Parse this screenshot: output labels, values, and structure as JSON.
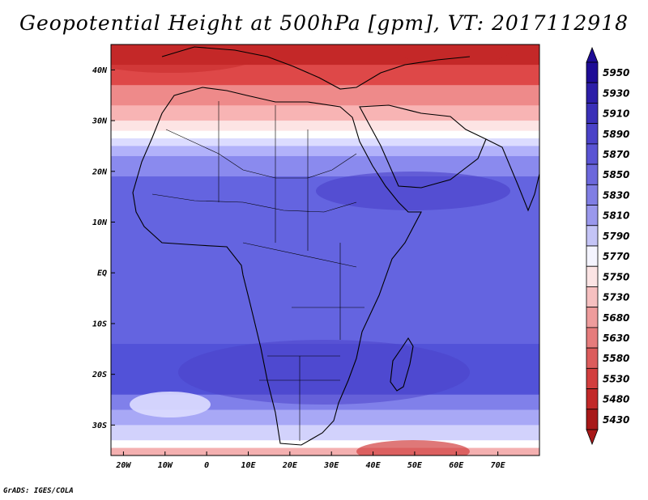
{
  "title": "Geopotential Height at 500hPa [gpm], VT: 2017112918",
  "credit": "GrADS: IGES/COLA",
  "map": {
    "lon_range": [
      -23,
      80
    ],
    "lat_range": [
      -36,
      45
    ],
    "lon_ticks": [
      {
        "value": -20,
        "label": "20W"
      },
      {
        "value": -10,
        "label": "10W"
      },
      {
        "value": 0,
        "label": "0"
      },
      {
        "value": 10,
        "label": "10E"
      },
      {
        "value": 20,
        "label": "20E"
      },
      {
        "value": 30,
        "label": "30E"
      },
      {
        "value": 40,
        "label": "40E"
      },
      {
        "value": 50,
        "label": "50E"
      },
      {
        "value": 60,
        "label": "60E"
      },
      {
        "value": 70,
        "label": "70E"
      }
    ],
    "lat_ticks": [
      {
        "value": 40,
        "label": "40N"
      },
      {
        "value": 30,
        "label": "30N"
      },
      {
        "value": 20,
        "label": "20N"
      },
      {
        "value": 10,
        "label": "10N"
      },
      {
        "value": 0,
        "label": "EQ"
      },
      {
        "value": -10,
        "label": "10S"
      },
      {
        "value": -20,
        "label": "20S"
      },
      {
        "value": -30,
        "label": "30S"
      }
    ],
    "bands": [
      {
        "lat_top": 45,
        "lat_bottom": 41,
        "color": "#c42828"
      },
      {
        "lat_top": 41,
        "lat_bottom": 37,
        "color": "#de4848"
      },
      {
        "lat_top": 37,
        "lat_bottom": 33,
        "color": "#ee8a8a"
      },
      {
        "lat_top": 33,
        "lat_bottom": 30,
        "color": "#f8b4b4"
      },
      {
        "lat_top": 30,
        "lat_bottom": 28,
        "color": "#fde4e4"
      },
      {
        "lat_top": 28,
        "lat_bottom": 26.5,
        "color": "#ffffff"
      },
      {
        "lat_top": 26.5,
        "lat_bottom": 25,
        "color": "#dcdcff"
      },
      {
        "lat_top": 25,
        "lat_bottom": 23,
        "color": "#b2b2fa"
      },
      {
        "lat_top": 23,
        "lat_bottom": 19,
        "color": "#8a8aee"
      },
      {
        "lat_top": 19,
        "lat_bottom": -14,
        "color": "#6464e0"
      },
      {
        "lat_top": -14,
        "lat_bottom": -24,
        "color": "#5252d8"
      },
      {
        "lat_top": -24,
        "lat_bottom": -27,
        "color": "#8080ea"
      },
      {
        "lat_top": -27,
        "lat_bottom": -30,
        "color": "#a8a8f6"
      },
      {
        "lat_top": -30,
        "lat_bottom": -33,
        "color": "#d2d2fc"
      },
      {
        "lat_top": -33,
        "lat_bottom": -34.5,
        "color": "#ffffff"
      },
      {
        "lat_top": -34.5,
        "lat_bottom": -36,
        "color": "#f4b0b0"
      }
    ]
  },
  "colorbar": {
    "levels": [
      {
        "label": "5950",
        "color": "#1e0c96"
      },
      {
        "label": "5930",
        "color": "#2c1ea8"
      },
      {
        "label": "5910",
        "color": "#3a30b8"
      },
      {
        "label": "5890",
        "color": "#4a42c8"
      },
      {
        "label": "5870",
        "color": "#5a54d4"
      },
      {
        "label": "5850",
        "color": "#6c68dc"
      },
      {
        "label": "5830",
        "color": "#807ee4"
      },
      {
        "label": "5810",
        "color": "#9a98ec"
      },
      {
        "label": "5790",
        "color": "#c4c4f6"
      },
      {
        "label": "5770",
        "color": "#f4f4fe"
      },
      {
        "label": "5750",
        "color": "#fbe4e4"
      },
      {
        "label": "5730",
        "color": "#f6c0c0"
      },
      {
        "label": "5680",
        "color": "#ee9c9c"
      },
      {
        "label": "5630",
        "color": "#e67c7c"
      },
      {
        "label": "5580",
        "color": "#dc5c5c"
      },
      {
        "label": "5530",
        "color": "#d23e3e"
      },
      {
        "label": "5480",
        "color": "#c22828"
      },
      {
        "label": "5430",
        "color": "#a81818"
      }
    ],
    "top_arrow_color": "#1e0c96",
    "bottom_arrow_color": "#a81818"
  }
}
